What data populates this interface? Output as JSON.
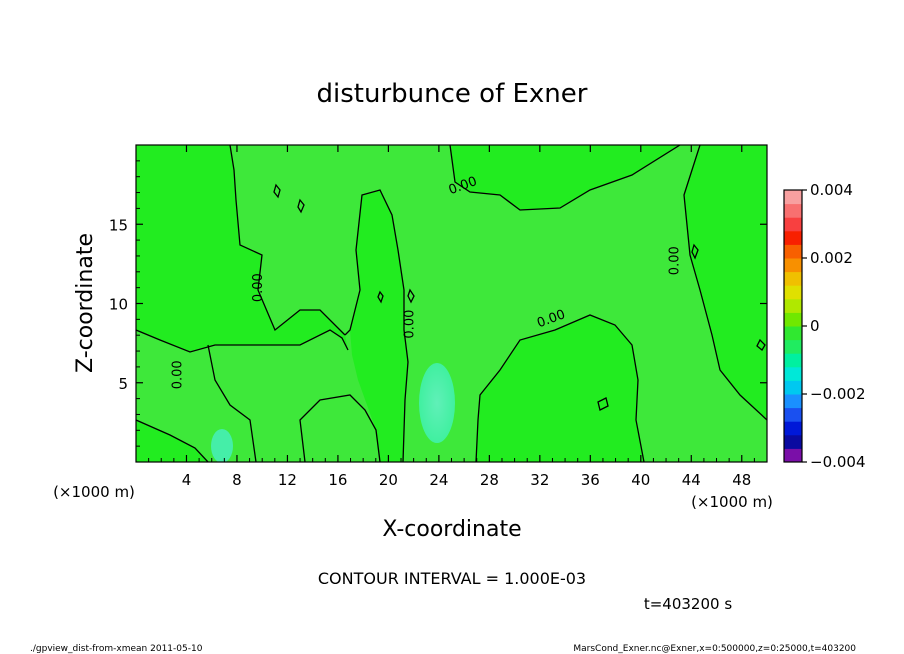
{
  "chart_data": {
    "type": "heatmap",
    "title": "disturbunce of Exner",
    "xlabel": "X-coordinate",
    "ylabel": "Z-coordinate",
    "x_unit": "(×1000 m)",
    "x_unit_right": "(×1000 m)",
    "xlim": [
      0,
      50
    ],
    "ylim": [
      0,
      20
    ],
    "x_ticks": [
      4,
      8,
      12,
      16,
      20,
      24,
      28,
      32,
      36,
      40,
      44,
      48
    ],
    "y_ticks": [
      5,
      10,
      15
    ],
    "contour_interval_text": "CONTOUR INTERVAL = 1.000E-03",
    "time_text": "t=403200 s",
    "contour_labels": [
      {
        "text": "0.00",
        "x": 26.0,
        "y": 17.2,
        "angle": -20
      },
      {
        "text": "0.00",
        "x": 22.0,
        "y": 8.7,
        "angle": -90
      },
      {
        "text": "0.00",
        "x": 10.0,
        "y": 11.0,
        "angle": -90
      },
      {
        "text": "0.00",
        "x": 3.6,
        "y": 5.5,
        "angle": -90
      },
      {
        "text": "0.00",
        "x": 33.0,
        "y": 8.8,
        "angle": -20
      },
      {
        "text": "0.00",
        "x": 43.0,
        "y": 12.7,
        "angle": -90
      }
    ],
    "colorbar": {
      "min": -0.004,
      "max": 0.004,
      "tick_labels": [
        "0.004",
        "0.002",
        "0",
        "−0.002",
        "−0.004"
      ],
      "tick_values": [
        0.004,
        0.002,
        0,
        -0.002,
        -0.004
      ],
      "colors": [
        "#7a0fa8",
        "#0a0aa0",
        "#0018d8",
        "#1a50f0",
        "#1a90ff",
        "#00c8f0",
        "#00e8d8",
        "#00f0a0",
        "#20ec60",
        "#30e830",
        "#70e800",
        "#b0e800",
        "#e0e000",
        "#f0c000",
        "#f89000",
        "#f86000",
        "#f82000",
        "#f84040",
        "#f87070",
        "#f8a0a0"
      ]
    },
    "field": {
      "background_value": 0.0,
      "background_color": "#3ee83a",
      "slightly_positive_color": "#22ec20",
      "anomalies": [
        {
          "label": "negative blob",
          "center": [
            24.0,
            3.7
          ],
          "extent": [
            1.4,
            2.6
          ],
          "value": -0.0005,
          "color": "#40f0a0"
        },
        {
          "label": "negative blob",
          "center": [
            6.8,
            1.1
          ],
          "extent": [
            0.9,
            1.1
          ],
          "value": -0.0004,
          "color": "#45eea8"
        }
      ]
    }
  },
  "footer": {
    "left": "./gpview_dist-from-xmean  2011-05-10",
    "right": "MarsCond_Exner.nc@Exner,x=0:500000,z=0:25000,t=403200"
  }
}
